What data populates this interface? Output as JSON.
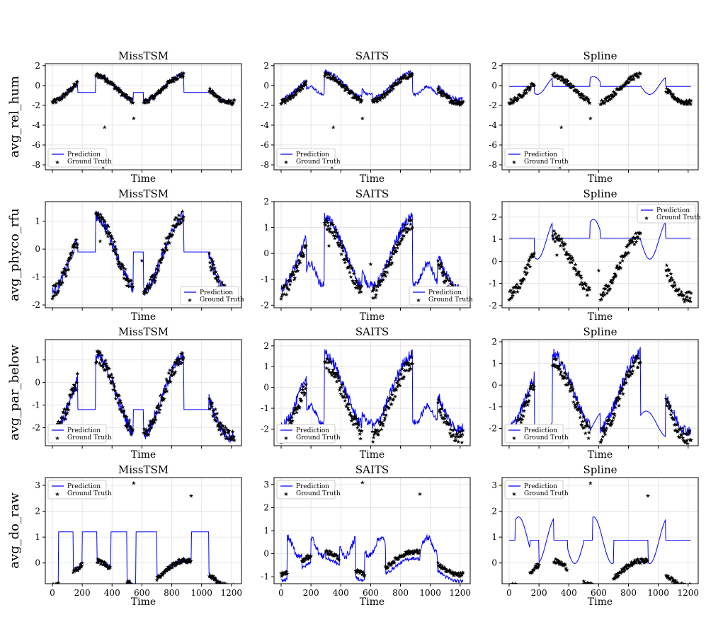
{
  "chart_data": {
    "type": "line",
    "layout": "4x3 grid",
    "x_label": "Time",
    "x_range": [
      0,
      1220
    ],
    "x_ticks": [
      0,
      200,
      400,
      600,
      800,
      1000,
      1200
    ],
    "grid": true,
    "legend": [
      {
        "name": "Prediction",
        "style": "line",
        "color": "#0000ff"
      },
      {
        "name": "Ground Truth",
        "style": "star",
        "color": "#ff0000"
      }
    ],
    "columns": [
      "MissTSM",
      "SAITS",
      "Spline"
    ],
    "rows": [
      {
        "ylabel": "avg_rel_hum",
        "ylim": [
          -8.5,
          2.2
        ],
        "yticks": [
          2,
          0,
          -2,
          -4,
          -6,
          -8
        ],
        "legend_positions": [
          "lower-left",
          "lower-left",
          "lower-left"
        ],
        "gt_segments": [
          [
            0,
            170
          ],
          [
            290,
            540
          ],
          [
            610,
            880
          ],
          [
            1050,
            1220
          ]
        ],
        "gt_shape": {
          "baseline": -0.3,
          "amp": 1.4
        },
        "outliers": [
          [
            350,
            -4.2
          ],
          [
            340,
            -8.2
          ],
          [
            545,
            -3.3
          ]
        ],
        "models": {
          "MissTSM": {
            "gap_mode": "flat",
            "gap_value": -0.7
          },
          "SAITS": {
            "gap_mode": "wave",
            "gap_value": -0.5,
            "offset": 0.3
          },
          "Spline": {
            "gap_mode": "spline",
            "gap_value": 0.0,
            "flat_all": true,
            "flat_value": -0.1
          }
        }
      },
      {
        "ylabel": "avg_phyco_rfu",
        "ylim": [
          -2.1,
          2.0
        ],
        "yticks": [
          1,
          0,
          -1,
          -2
        ],
        "ylim_by_col": [
          [
            -2.1,
            1.7
          ],
          [
            -2.1,
            2.0
          ],
          [
            -2.1,
            2.7
          ]
        ],
        "yticks_by_col": [
          [
            1,
            0,
            -1,
            -2
          ],
          [
            2,
            1,
            0,
            -1,
            -2
          ],
          [
            2,
            1,
            0,
            -1,
            -2
          ]
        ],
        "legend_positions": [
          "lower-right",
          "lower-right",
          "upper-right"
        ],
        "gt_segments": [
          [
            0,
            170
          ],
          [
            290,
            540
          ],
          [
            610,
            880
          ],
          [
            1050,
            1220
          ]
        ],
        "gt_shape": {
          "baseline": -0.2,
          "amp": 1.4
        },
        "outliers": [
          [
            320,
            0.3
          ],
          [
            600,
            -0.4
          ]
        ],
        "models": {
          "MissTSM": {
            "gap_mode": "flat",
            "gap_value": -0.1
          },
          "SAITS": {
            "gap_mode": "wave",
            "gap_value": -0.8,
            "offset": 0.2
          },
          "Spline": {
            "gap_mode": "spline",
            "gap_value": 1.0,
            "flat_all": true,
            "flat_value": 1.05
          }
        }
      },
      {
        "ylabel": "avg_par_below",
        "ylim": [
          -2.8,
          1.9
        ],
        "yticks": [
          1,
          0,
          -1,
          -2
        ],
        "ylim_by_col": [
          [
            -2.8,
            1.9
          ],
          [
            -2.8,
            2.3
          ],
          [
            -2.8,
            2.1
          ]
        ],
        "yticks_by_col": [
          [
            1,
            0,
            -1,
            -2
          ],
          [
            2,
            1,
            0,
            -1,
            -2
          ],
          [
            2,
            1,
            0,
            -1,
            -2
          ]
        ],
        "legend_positions": [
          "lower-left",
          "lower-left",
          "lower-left"
        ],
        "gt_segments": [
          [
            0,
            170
          ],
          [
            290,
            540
          ],
          [
            610,
            880
          ],
          [
            1050,
            1220
          ]
        ],
        "gt_shape": {
          "baseline": -0.6,
          "amp": 1.8
        },
        "outliers": [],
        "models": {
          "MissTSM": {
            "gap_mode": "flat",
            "gap_value": -1.2
          },
          "SAITS": {
            "gap_mode": "wave",
            "gap_value": -1.3,
            "offset": 0.4
          },
          "Spline": {
            "gap_mode": "spline",
            "gap_value": -1.8,
            "offset": 0.3
          }
        }
      },
      {
        "ylabel": "avg_do_raw",
        "ylim": [
          -0.8,
          3.3
        ],
        "yticks": [
          3,
          2,
          1,
          0
        ],
        "ylim_by_col": [
          [
            -0.8,
            3.3
          ],
          [
            -1.3,
            3.3
          ],
          [
            -0.8,
            3.3
          ]
        ],
        "yticks_by_col": [
          [
            3,
            2,
            1,
            0
          ],
          [
            3,
            2,
            1,
            0,
            -1
          ],
          [
            3,
            2,
            1,
            0
          ]
        ],
        "legend_positions": [
          "upper-left",
          "upper-left",
          "upper-left"
        ],
        "gt_segments": [
          [
            0,
            40
          ],
          [
            140,
            200
          ],
          [
            300,
            390
          ],
          [
            500,
            560
          ],
          [
            700,
            880
          ],
          [
            880,
            930
          ],
          [
            1050,
            1220
          ]
        ],
        "gt_shape": {
          "baseline": -0.4,
          "amp": 0.5
        },
        "outliers": [
          [
            545,
            3.1
          ],
          [
            930,
            2.6
          ]
        ],
        "models": {
          "MissTSM": {
            "gap_mode": "flat",
            "gap_value": 1.2
          },
          "SAITS": {
            "gap_mode": "wave",
            "gap_value": 0.3,
            "offset": -0.3
          },
          "Spline": {
            "gap_mode": "spline",
            "gap_value": 0.88,
            "flat_all": true,
            "flat_value": 0.88
          }
        }
      }
    ]
  }
}
